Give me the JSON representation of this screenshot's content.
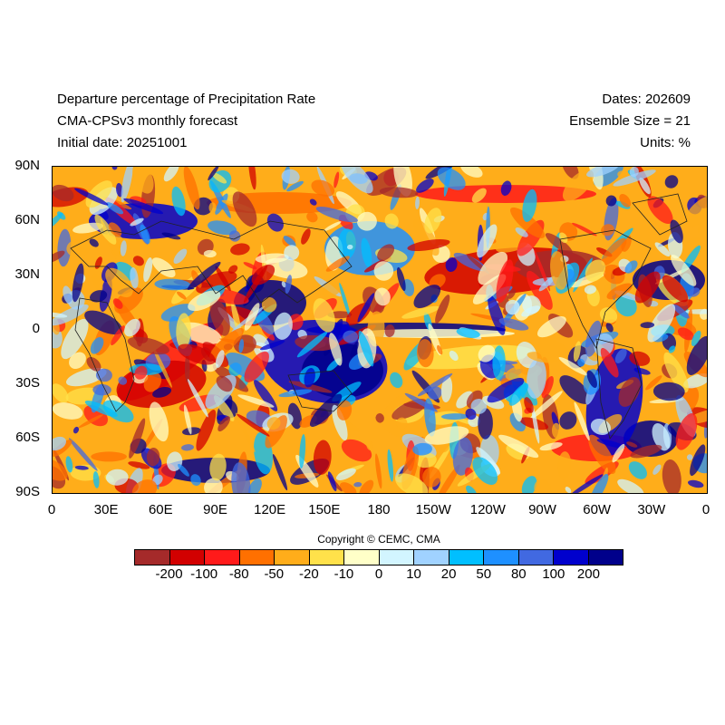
{
  "header": {
    "title": "Departure percentage of Precipitation Rate",
    "model": "CMA-CPSv3 monthly forecast",
    "initial_date": "Initial date: 20251001",
    "dates": "Dates: 202609",
    "ensemble": "Ensemble Size = 21",
    "units": "Units: %"
  },
  "map": {
    "lat_labels": [
      "90N",
      "60N",
      "30N",
      "0",
      "30S",
      "60S",
      "90S"
    ],
    "lon_labels": [
      "0",
      "30E",
      "60E",
      "90E",
      "120E",
      "150E",
      "180",
      "150W",
      "120W",
      "90W",
      "60W",
      "30W",
      "0"
    ]
  },
  "copyright": "Copyright © CEMC, CMA",
  "colorbar": {
    "colors": [
      "#a52a2a",
      "#d20000",
      "#ff1a1a",
      "#ff7000",
      "#ffad1a",
      "#ffe14a",
      "#ffffc8",
      "#d2f5ff",
      "#a0d2ff",
      "#00bfff",
      "#1e90ff",
      "#4169e1",
      "#0000cd",
      "#00008b"
    ],
    "labels": [
      "-200",
      "-100",
      "-80",
      "-50",
      "-20",
      "-10",
      "0",
      "10",
      "20",
      "50",
      "80",
      "100",
      "200"
    ]
  }
}
